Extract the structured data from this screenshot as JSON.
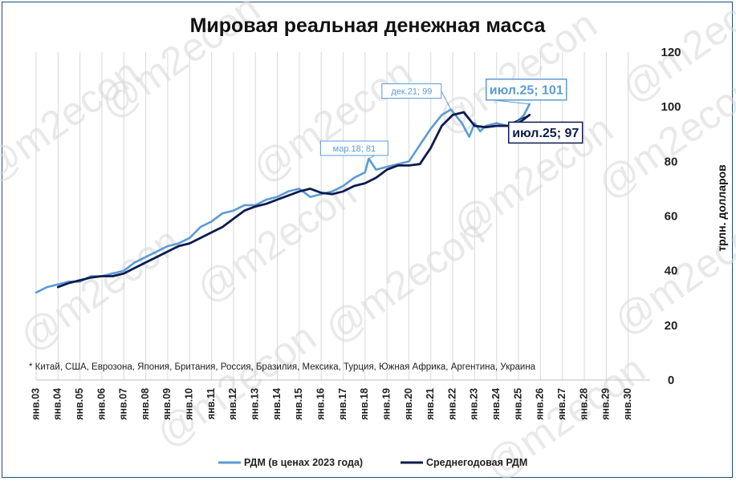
{
  "chart_data": {
    "type": "line",
    "title": "Мировая реальная денежная масса",
    "ylabel": "трлн. долларов",
    "ylim": [
      0,
      120
    ],
    "yticks": [
      0,
      20,
      40,
      60,
      80,
      100,
      120
    ],
    "grid": "vertical",
    "x_tick_labels": [
      "янв.03",
      "янв.04",
      "янв.05",
      "янв.06",
      "янв.07",
      "янв.08",
      "янв.09",
      "янв.10",
      "янв.11",
      "янв.12",
      "янв.13",
      "янв.14",
      "янв.15",
      "янв.16",
      "янв.17",
      "янв.18",
      "янв.19",
      "янв.20",
      "янв.21",
      "янв.22",
      "янв.23",
      "янв.24",
      "янв.25",
      "янв.26",
      "янв.27",
      "янв.28",
      "янв.29",
      "янв.30"
    ],
    "x_range": [
      "2003-01",
      "2030-12"
    ],
    "series": [
      {
        "name": "РДМ (в ценах 2023 года)",
        "color": "#5b9bd5",
        "x": [
          "2003-01",
          "2003-07",
          "2004-01",
          "2004-07",
          "2005-01",
          "2005-07",
          "2006-01",
          "2006-07",
          "2007-01",
          "2007-07",
          "2008-01",
          "2008-07",
          "2009-01",
          "2009-07",
          "2010-01",
          "2010-07",
          "2011-01",
          "2011-07",
          "2012-01",
          "2012-07",
          "2013-01",
          "2013-07",
          "2014-01",
          "2014-07",
          "2015-01",
          "2015-07",
          "2016-01",
          "2016-07",
          "2017-01",
          "2017-07",
          "2018-01",
          "2018-03",
          "2018-07",
          "2019-01",
          "2019-07",
          "2020-01",
          "2020-07",
          "2021-01",
          "2021-07",
          "2021-12",
          "2022-06",
          "2022-10",
          "2023-01",
          "2023-04",
          "2023-07",
          "2024-01",
          "2024-07",
          "2025-01",
          "2025-04",
          "2025-07"
        ],
        "values": [
          32,
          34,
          35,
          36,
          36,
          38,
          38,
          39,
          40,
          43,
          45,
          47,
          49,
          50,
          52,
          56,
          58,
          61,
          62,
          64,
          64,
          66,
          67,
          69,
          70,
          67,
          68,
          69,
          71,
          74,
          76,
          81,
          77,
          78,
          79,
          80,
          86,
          92,
          97,
          99,
          94,
          89,
          94,
          91,
          93,
          94,
          93,
          95,
          97,
          101
        ]
      },
      {
        "name": "Среднегодовая РДМ",
        "color": "#0d1b4f",
        "x": [
          "2004-01",
          "2004-07",
          "2005-01",
          "2005-07",
          "2006-01",
          "2006-07",
          "2007-01",
          "2007-07",
          "2008-01",
          "2008-07",
          "2009-01",
          "2009-07",
          "2010-01",
          "2010-07",
          "2011-01",
          "2011-07",
          "2012-01",
          "2012-07",
          "2013-01",
          "2013-07",
          "2014-01",
          "2014-07",
          "2015-01",
          "2015-07",
          "2016-01",
          "2016-07",
          "2017-01",
          "2017-07",
          "2018-01",
          "2018-07",
          "2019-01",
          "2019-07",
          "2020-01",
          "2020-07",
          "2021-01",
          "2021-07",
          "2022-01",
          "2022-07",
          "2023-01",
          "2023-07",
          "2024-01",
          "2024-07",
          "2025-01",
          "2025-07"
        ],
        "values": [
          34,
          35.5,
          36.5,
          37.5,
          38,
          38,
          39,
          41,
          43,
          45,
          47,
          49,
          50,
          52,
          54,
          56,
          59,
          62,
          63.5,
          64.5,
          66,
          67.5,
          69,
          70,
          68.5,
          68,
          69,
          71,
          72,
          74,
          77,
          78.5,
          78.5,
          79,
          85,
          93,
          97,
          98,
          93,
          92.5,
          93,
          93,
          94,
          97
        ]
      }
    ],
    "annotations": [
      {
        "label": "мар.18; 81",
        "series": "РДМ (в ценах 2023 года)",
        "x": "2018-03",
        "y": 81
      },
      {
        "label": "дек.21; 99",
        "series": "РДМ (в ценах 2023 года)",
        "x": "2021-12",
        "y": 99
      },
      {
        "label": "июл.25; 101",
        "series": "РДМ (в ценах 2023 года)",
        "x": "2025-07",
        "y": 101
      },
      {
        "label": "июл.25; 97",
        "series": "Среднегодовая РДМ",
        "x": "2025-07",
        "y": 97
      }
    ],
    "footnote": "* Китай, США, Еврозона, Япония, Британия, Россия, Бразилия, Мексика, Турция, Южная Африка, Аргентина, Украина",
    "legend": {
      "position": "bottom",
      "items": [
        "РДМ (в ценах 2023 года)",
        "Среднегодовая РДМ"
      ]
    }
  },
  "watermark": "@m2econ"
}
